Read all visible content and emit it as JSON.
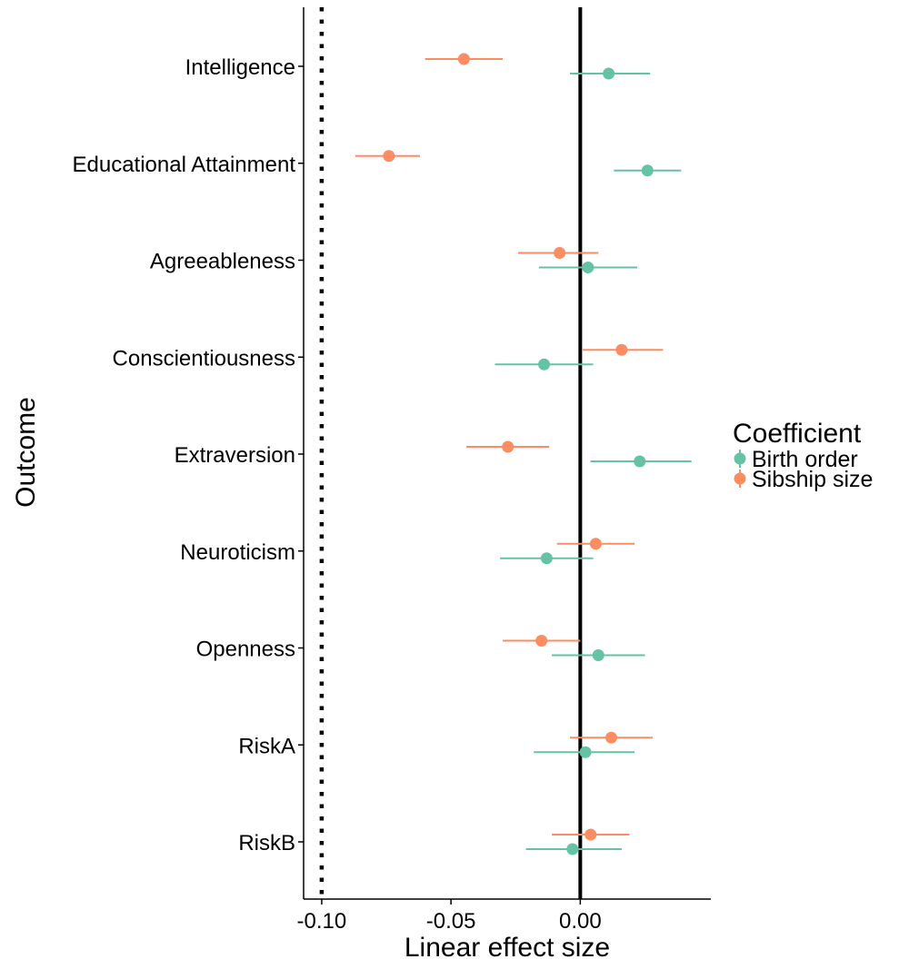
{
  "chart_data": {
    "type": "forest",
    "xlabel": "Linear effect size",
    "ylabel": "Outcome",
    "xlim": [
      -0.107,
      0.0505
    ],
    "x_ticks": [
      -0.1,
      -0.05,
      0.0
    ],
    "x_tick_labels": [
      "-0.10",
      "-0.05",
      "0.00"
    ],
    "reference_lines": [
      {
        "x": 0.0,
        "style": "solid"
      },
      {
        "x": -0.1,
        "style": "dotted"
      }
    ],
    "grid": false,
    "legend": {
      "title": "Coefficient",
      "placement": "right"
    },
    "categories": [
      "Intelligence",
      "Educational Attainment",
      "Agreeableness",
      "Conscientiousness",
      "Extraversion",
      "Neuroticism",
      "Openness",
      "RiskA",
      "RiskB"
    ],
    "series": [
      {
        "name": "Birth order",
        "color": "#66c2a5",
        "estimates": [
          0.011,
          0.026,
          0.003,
          -0.014,
          0.023,
          -0.013,
          0.007,
          0.002,
          -0.003
        ],
        "ci_low": [
          -0.004,
          0.013,
          -0.016,
          -0.033,
          0.004,
          -0.031,
          -0.011,
          -0.018,
          -0.021
        ],
        "ci_high": [
          0.027,
          0.039,
          0.022,
          0.005,
          0.043,
          0.005,
          0.025,
          0.021,
          0.016
        ]
      },
      {
        "name": "Sibship size",
        "color": "#fc8d62",
        "estimates": [
          -0.045,
          -0.074,
          -0.008,
          0.016,
          -0.028,
          0.006,
          -0.015,
          0.012,
          0.004
        ],
        "ci_low": [
          -0.06,
          -0.087,
          -0.024,
          0.001,
          -0.044,
          -0.009,
          -0.03,
          -0.004,
          -0.011
        ],
        "ci_high": [
          -0.03,
          -0.062,
          0.007,
          0.032,
          -0.012,
          0.021,
          0.0,
          0.028,
          0.019
        ]
      }
    ]
  }
}
